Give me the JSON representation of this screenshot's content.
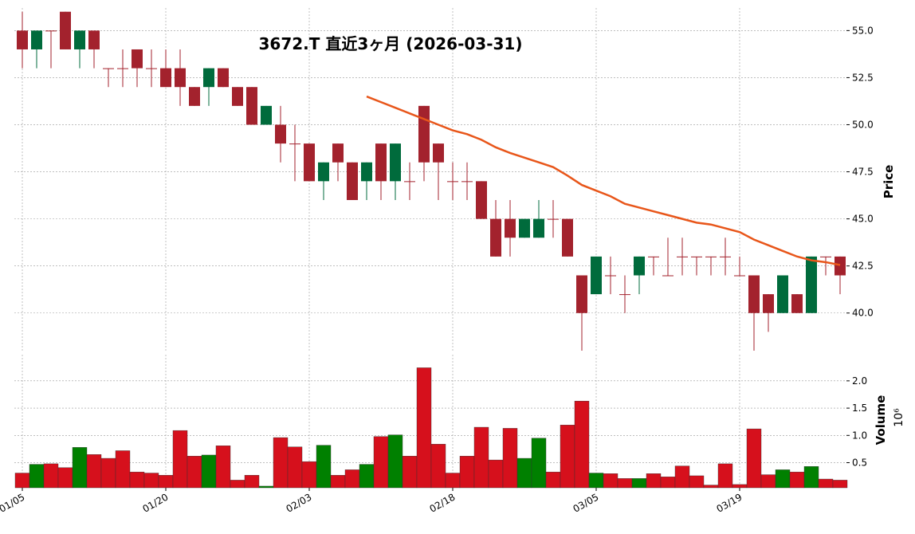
{
  "chart_data": [
    {
      "type": "candlestick",
      "title": "3672.T  直近3ヶ月  (2026-03-31)",
      "ylabel": "Price",
      "open": [
        55,
        54,
        55,
        56,
        54,
        55,
        53,
        53,
        54,
        53,
        53,
        53,
        52,
        52,
        53,
        52,
        52,
        50,
        50,
        49,
        49,
        47,
        49,
        48,
        47,
        49,
        47,
        47,
        51,
        49,
        47,
        47,
        47,
        45,
        45,
        44,
        44,
        45,
        45,
        42,
        41,
        42,
        41,
        42,
        43,
        42,
        43,
        43,
        43,
        43,
        42,
        42,
        41,
        40,
        41,
        40,
        43,
        43
      ],
      "high": [
        56,
        55,
        55,
        56,
        55,
        55,
        53,
        54,
        54,
        54,
        54,
        54,
        52,
        53,
        53,
        52,
        52,
        51,
        51,
        50,
        49,
        48,
        49,
        48,
        48,
        49,
        49,
        48,
        51,
        49,
        48,
        48,
        47,
        46,
        46,
        45,
        46,
        46,
        45,
        42,
        43,
        43,
        42,
        43,
        43,
        44,
        44,
        43,
        43,
        44,
        43,
        42,
        41,
        42,
        41,
        43,
        43,
        43
      ],
      "low": [
        53,
        53,
        53,
        54,
        53,
        53,
        52,
        52,
        52,
        52,
        52,
        51,
        51,
        51,
        52,
        51,
        50,
        50,
        48,
        47,
        47,
        46,
        47,
        46,
        46,
        46,
        46,
        46,
        47,
        46,
        46,
        46,
        45,
        43,
        43,
        44,
        44,
        44,
        43,
        38,
        41,
        41,
        40,
        41,
        42,
        42,
        42,
        42,
        42,
        42,
        42,
        38,
        39,
        40,
        40,
        40,
        42,
        41
      ],
      "close": [
        54,
        55,
        55,
        54,
        55,
        54,
        53,
        53,
        53,
        53,
        52,
        52,
        51,
        53,
        52,
        51,
        50,
        51,
        49,
        49,
        47,
        48,
        48,
        46,
        48,
        47,
        49,
        47,
        48,
        48,
        47,
        47,
        45,
        43,
        44,
        45,
        45,
        45,
        43,
        40,
        43,
        42,
        41,
        43,
        43,
        42,
        43,
        43,
        43,
        43,
        42,
        40,
        40,
        42,
        40,
        43,
        43,
        42
      ],
      "up_color": "#006b3c",
      "down_color": "#a3222d",
      "ma_values": [
        null,
        null,
        null,
        null,
        null,
        null,
        null,
        null,
        null,
        null,
        null,
        null,
        null,
        null,
        null,
        null,
        null,
        null,
        null,
        null,
        null,
        null,
        null,
        null,
        51.5,
        51.2,
        50.9,
        50.6,
        50.3,
        50.0,
        49.7,
        49.5,
        49.2,
        48.8,
        48.5,
        48.25,
        48.0,
        47.75,
        47.3,
        46.8,
        46.5,
        46.2,
        45.8,
        45.6,
        45.4,
        45.2,
        45.0,
        44.8,
        44.7,
        44.5,
        44.3,
        43.9,
        43.6,
        43.3,
        43.0,
        42.8,
        42.7,
        42.55
      ],
      "ma_color": "#e8561a",
      "ylim": [
        38,
        56.2
      ],
      "yticks": [
        {
          "value": 40,
          "label": "40.0"
        },
        42.5,
        {
          "value": 45,
          "label": "45.0"
        },
        47.5,
        {
          "value": 50,
          "label": "50.0"
        },
        52.5,
        {
          "value": 55,
          "label": "55.0"
        }
      ],
      "grid": true
    },
    {
      "type": "bar",
      "ylabel": "Volume",
      "yoffset_label": "10⁶",
      "categories": [
        "01/05",
        null,
        null,
        null,
        null,
        null,
        null,
        null,
        null,
        null,
        "01/20",
        null,
        null,
        null,
        null,
        null,
        null,
        null,
        null,
        null,
        "02/03",
        null,
        null,
        null,
        null,
        null,
        null,
        null,
        null,
        null,
        "02/18",
        null,
        null,
        null,
        null,
        null,
        null,
        null,
        null,
        null,
        "03/05",
        null,
        null,
        null,
        null,
        null,
        null,
        null,
        null,
        null,
        "03/19",
        null,
        null,
        null,
        null,
        null,
        null,
        null
      ],
      "values": [
        0.31,
        0.47,
        0.48,
        0.41,
        0.78,
        0.65,
        0.58,
        0.72,
        0.33,
        0.31,
        0.27,
        1.09,
        0.62,
        0.64,
        0.81,
        0.18,
        0.27,
        0.07,
        0.96,
        0.79,
        0.52,
        0.82,
        0.27,
        0.37,
        0.47,
        0.98,
        1.01,
        0.62,
        2.24,
        0.84,
        0.31,
        0.62,
        1.15,
        0.55,
        1.13,
        0.58,
        0.95,
        0.33,
        1.19,
        1.63,
        0.31,
        0.3,
        0.21,
        0.21,
        0.3,
        0.24,
        0.44,
        0.26,
        0.09,
        0.48,
        0.1,
        1.12,
        0.28,
        0.37,
        0.33,
        0.43,
        0.2,
        0.18
      ],
      "up_color": "#008000",
      "down_color": "#d6101c",
      "ylim": [
        0.04,
        2.48
      ],
      "yticks": [
        0.5,
        {
          "value": 1.0,
          "label": "1.0"
        },
        1.5,
        {
          "value": 2.0,
          "label": "2.0"
        }
      ],
      "grid": true
    }
  ]
}
